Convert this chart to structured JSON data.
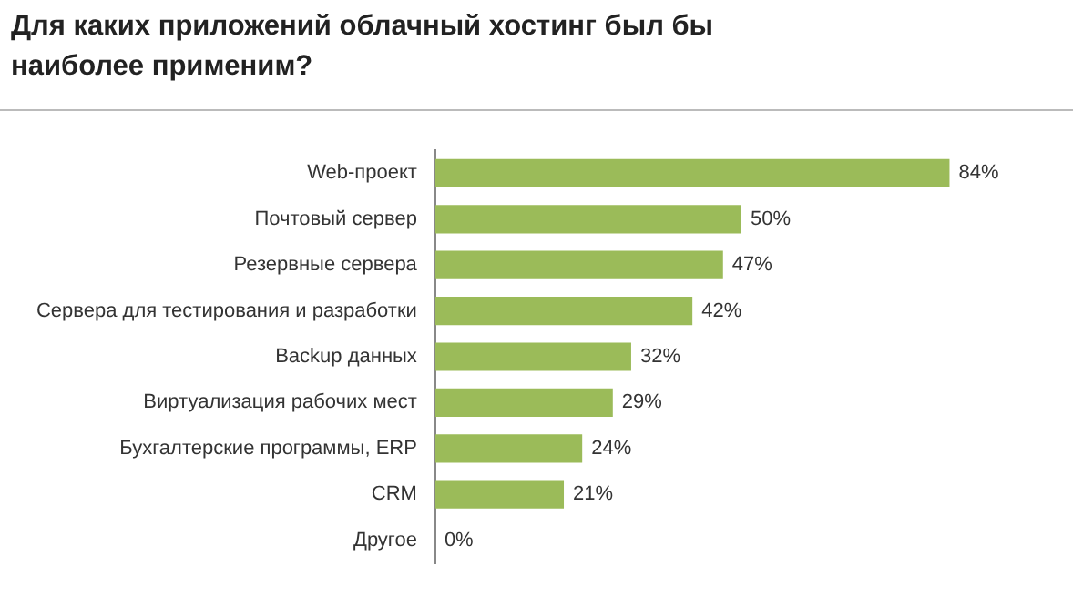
{
  "chart_data": {
    "type": "bar",
    "orientation": "horizontal",
    "title": "Для каких приложений облачный хостинг был бы наиболее применим?",
    "categories": [
      "Web-проект",
      "Почтовый сервер",
      "Резервные сервера",
      "Сервера для тестирования и разработки",
      "Backup данных",
      "Виртуализация рабочих мест",
      "Бухгалтерские программы, ERP",
      "CRM",
      "Другое"
    ],
    "values": [
      84,
      50,
      47,
      42,
      32,
      29,
      24,
      21,
      0
    ],
    "value_labels": [
      "84%",
      "50%",
      "47%",
      "42%",
      "32%",
      "29%",
      "24%",
      "21%",
      "0%"
    ],
    "color": "#9bbb59",
    "tick_labels": "y"
  }
}
